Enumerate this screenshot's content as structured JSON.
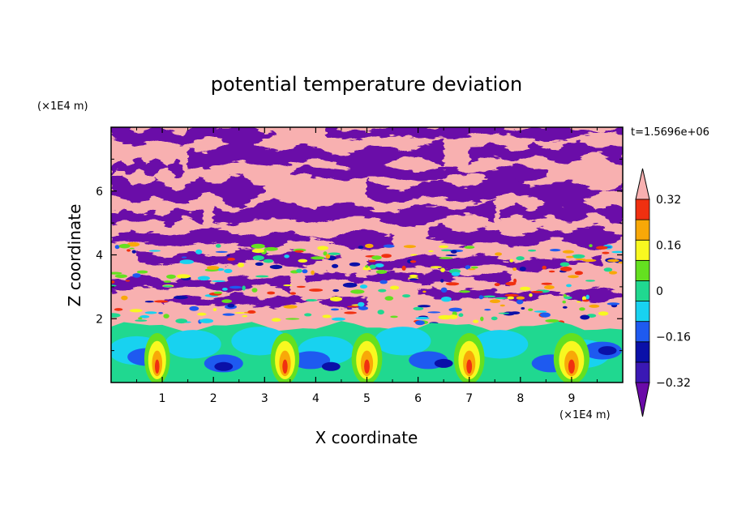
{
  "chart_data": {
    "type": "heatmap",
    "title": "potential temperature deviation",
    "xlabel": "X coordinate",
    "ylabel": "Z coordinate",
    "x_unit": "(×1E4 m)",
    "z_unit": "(×1E4 m)",
    "time_label": "t=1.5696e+06",
    "xlim": [
      0,
      10
    ],
    "ylim": [
      0,
      8
    ],
    "x_ticks": [
      1,
      2,
      3,
      4,
      5,
      6,
      7,
      8,
      9
    ],
    "y_ticks": [
      2,
      4,
      6
    ],
    "colorbar": {
      "levels": [
        -0.4,
        -0.32,
        -0.24,
        -0.16,
        -0.08,
        0,
        0.08,
        0.16,
        0.24,
        0.32,
        0.4
      ],
      "colors": [
        "#6a0aa8",
        "#3a18b4",
        "#0a10a8",
        "#1e5af0",
        "#18d2f0",
        "#20d890",
        "#64e020",
        "#f8f820",
        "#f8a808",
        "#f03010",
        "#f8b0b0"
      ],
      "tick_labels": [
        {
          "value": 0.32,
          "label": "0.32"
        },
        {
          "value": 0.16,
          "label": "0.16"
        },
        {
          "value": 0,
          "label": "0"
        },
        {
          "value": -0.16,
          "label": "−0.16"
        },
        {
          "value": -0.32,
          "label": "−0.32"
        }
      ],
      "extend": "both"
    }
  }
}
